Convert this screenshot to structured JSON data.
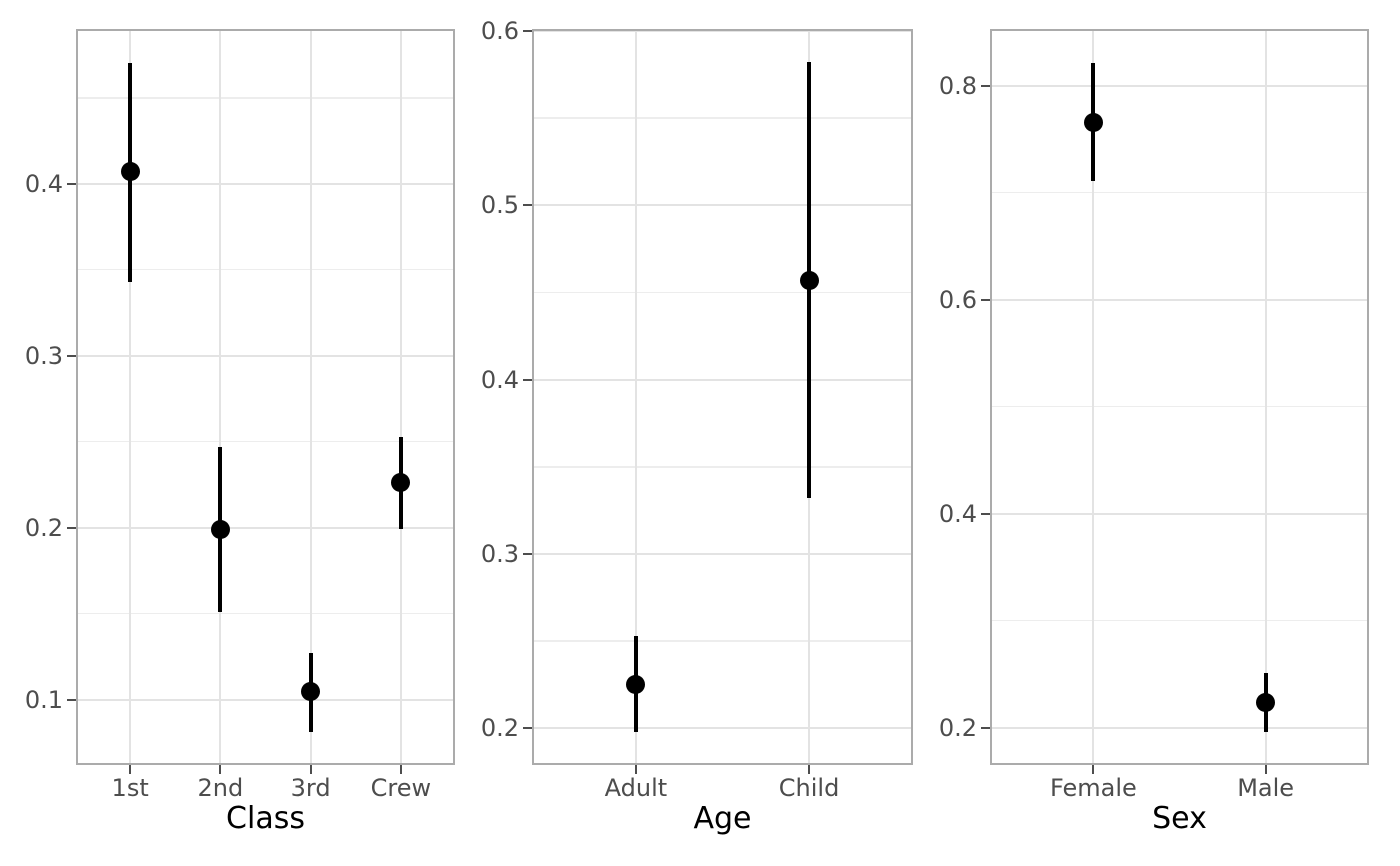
{
  "figure": {
    "description": "Three-panel point-range (estimate with confidence interval) plot of survival proportion by Class, Age and Sex",
    "background": "#FFFFFF"
  },
  "colors": {
    "background": "#FFFFFF",
    "point": "#000000",
    "panel_border": "#ABABAB",
    "grid_major": "#E3E3E3",
    "grid_minor": "#EDEDED",
    "tick_mark": "#4D4D4D",
    "tick_label": "#4D4D4D",
    "axis_title": "#000000"
  },
  "chart_data": [
    {
      "type": "scatter",
      "variant": "pointrange",
      "title": "",
      "xlabel": "Class",
      "ylabel": "",
      "legend": "none",
      "grid": true,
      "categories": [
        "1st",
        "2nd",
        "3rd",
        "Crew"
      ],
      "points": [
        {
          "category": "1st",
          "estimate": 0.407,
          "ci_low": 0.343,
          "ci_high": 0.47
        },
        {
          "category": "2nd",
          "estimate": 0.199,
          "ci_low": 0.151,
          "ci_high": 0.247
        },
        {
          "category": "3rd",
          "estimate": 0.105,
          "ci_low": 0.081,
          "ci_high": 0.127
        },
        {
          "category": "Crew",
          "estimate": 0.226,
          "ci_low": 0.199,
          "ci_high": 0.253
        }
      ],
      "y_ticks": [
        0.1,
        0.2,
        0.3,
        0.4
      ],
      "y_tick_labels": [
        "0.1",
        "0.2",
        "0.3",
        "0.4"
      ],
      "y_minor_ticks": [
        0.15,
        0.25,
        0.35,
        0.45
      ],
      "ylim": [
        0.062,
        0.49
      ]
    },
    {
      "type": "scatter",
      "variant": "pointrange",
      "title": "",
      "xlabel": "Age",
      "ylabel": "",
      "legend": "none",
      "grid": true,
      "categories": [
        "Adult",
        "Child"
      ],
      "points": [
        {
          "category": "Adult",
          "estimate": 0.225,
          "ci_low": 0.198,
          "ci_high": 0.253
        },
        {
          "category": "Child",
          "estimate": 0.457,
          "ci_low": 0.332,
          "ci_high": 0.582
        }
      ],
      "y_ticks": [
        0.2,
        0.3,
        0.4,
        0.5,
        0.6
      ],
      "y_tick_labels": [
        "0.2",
        "0.3",
        "0.4",
        "0.5",
        "0.6"
      ],
      "y_minor_ticks": [
        0.25,
        0.35,
        0.45,
        0.55
      ],
      "ylim": [
        0.179,
        0.601
      ]
    },
    {
      "type": "scatter",
      "variant": "pointrange",
      "title": "",
      "xlabel": "Sex",
      "ylabel": "",
      "legend": "none",
      "grid": true,
      "categories": [
        "Female",
        "Male"
      ],
      "points": [
        {
          "category": "Female",
          "estimate": 0.766,
          "ci_low": 0.711,
          "ci_high": 0.821
        },
        {
          "category": "Male",
          "estimate": 0.223,
          "ci_low": 0.196,
          "ci_high": 0.251
        }
      ],
      "y_ticks": [
        0.2,
        0.4,
        0.6,
        0.8
      ],
      "y_tick_labels": [
        "0.2",
        "0.4",
        "0.6",
        "0.8"
      ],
      "y_minor_ticks": [
        0.3,
        0.5,
        0.7
      ],
      "ylim": [
        0.165,
        0.853
      ]
    }
  ]
}
